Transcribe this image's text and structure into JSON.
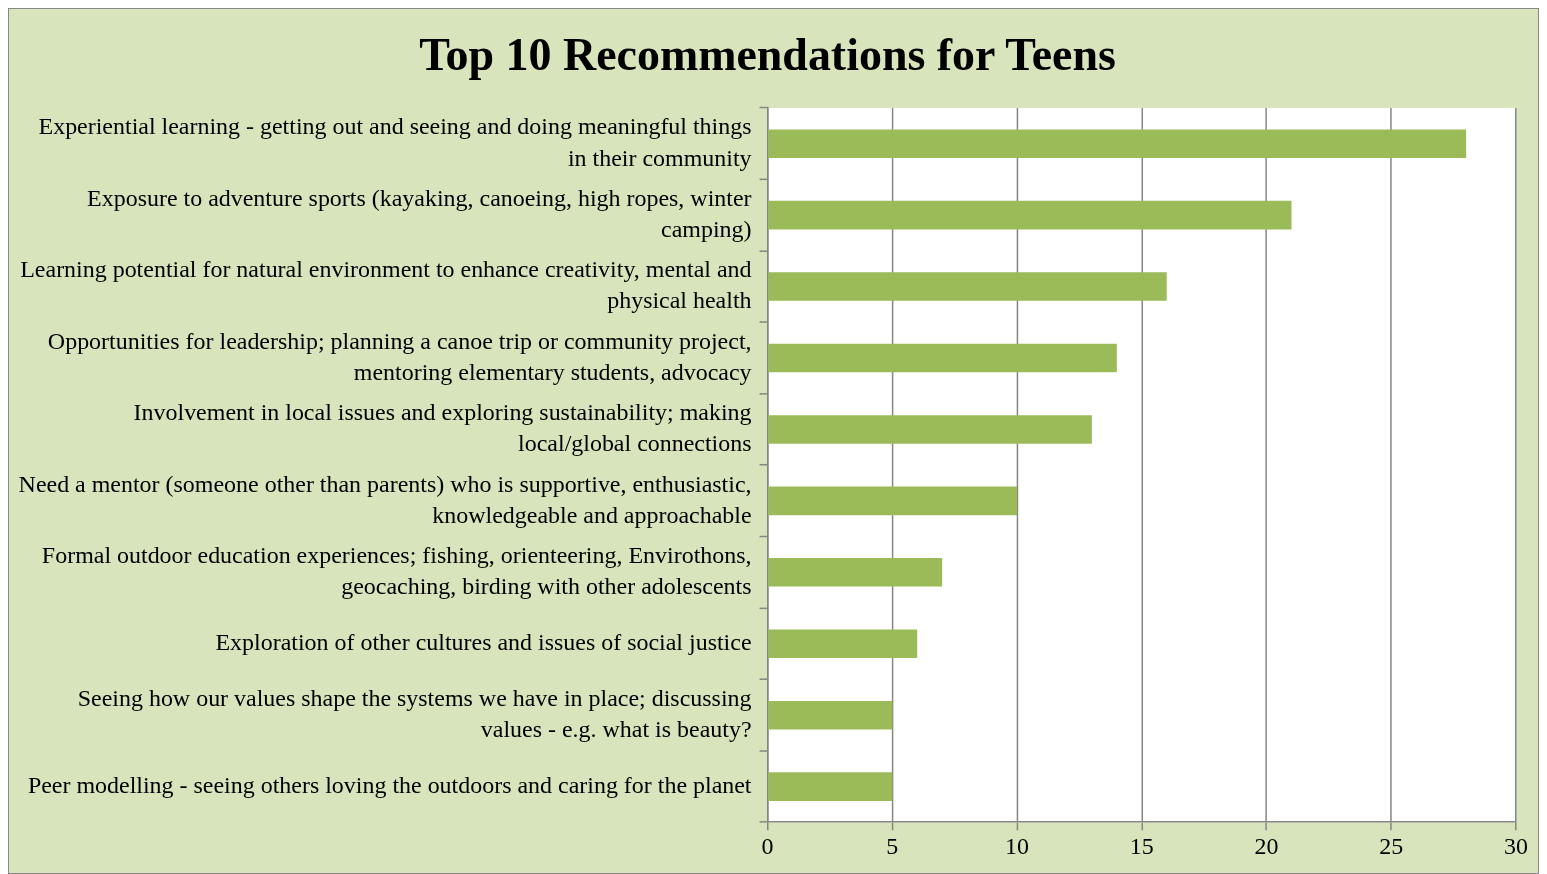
{
  "chart_data": {
    "type": "bar",
    "orientation": "horizontal",
    "title": "Top 10 Recommendations for Teens",
    "categories": [
      "Experiential learning - getting out and seeing and doing meaningful things in their community",
      "Exposure to adventure sports (kayaking, canoeing, high ropes, winter camping)",
      "Learning potential for natural environment to enhance creativity, mental and physical health",
      "Opportunities for leadership; planning a canoe trip or community project, mentoring elementary students, advocacy",
      "Involvement in local issues and exploring sustainability; making local/global connections",
      "Need a mentor (someone other than parents) who is supportive, enthusiastic, knowledgeable and approachable",
      "Formal outdoor education experiences; fishing, orienteering, Envirothons, geocaching, birding with other adolescents",
      "Exploration of other cultures and issues of social justice",
      "Seeing how our values shape the systems we have in place; discussing values - e.g. what is beauty?",
      "Peer modelling - seeing others loving the outdoors and caring for the planet"
    ],
    "values": [
      28,
      21,
      16,
      14,
      13,
      10,
      7,
      6,
      5,
      5
    ],
    "color": "#9bbb59",
    "xlim": [
      0,
      30
    ],
    "xticks": [
      0,
      5,
      10,
      15,
      20,
      25,
      30
    ],
    "grid": "x",
    "legend": false
  }
}
